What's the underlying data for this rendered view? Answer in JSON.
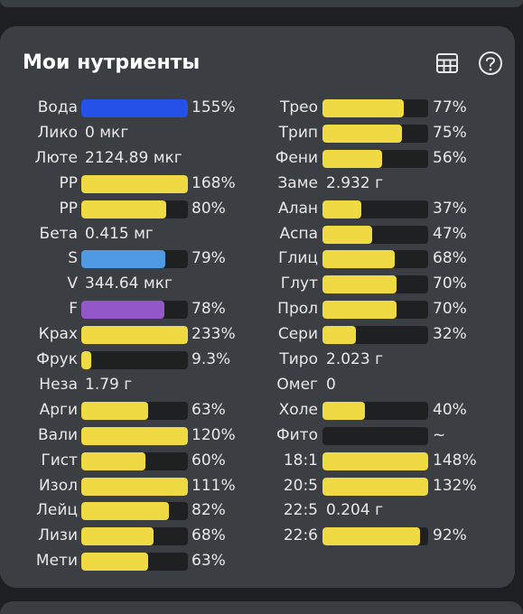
{
  "card": {
    "title": "Мои нутриенты",
    "icons": [
      "table-icon",
      "help-icon"
    ]
  },
  "colors": {
    "yellow": "#f0da44",
    "blue": "#2451e8",
    "lightblue": "#4f9ae2",
    "purple": "#9457c8",
    "track": "#1f2022"
  },
  "left": [
    {
      "label": "Вода",
      "value": "155%",
      "fill": 1,
      "color": "blue"
    },
    {
      "label": "Лико",
      "value": "0 мкг"
    },
    {
      "label": "Люте",
      "value": "2124.89 мкг"
    },
    {
      "label": "PP",
      "value": "168%",
      "fill": 1,
      "color": "yellow"
    },
    {
      "label": "PP",
      "value": "80%",
      "fill": 0.8,
      "color": "yellow"
    },
    {
      "label": "Бета",
      "value": "0.415 мг"
    },
    {
      "label": "S",
      "value": "79%",
      "fill": 0.79,
      "color": "lightblue"
    },
    {
      "label": "V",
      "value": "344.64 мкг"
    },
    {
      "label": "F",
      "value": "78%",
      "fill": 0.78,
      "color": "purple"
    },
    {
      "label": "Крах",
      "value": "233%",
      "fill": 1,
      "color": "yellow"
    },
    {
      "label": "Фрук",
      "value": "9.3%",
      "fill": 0.093,
      "color": "yellow"
    },
    {
      "label": "Неза",
      "value": "1.79 г"
    },
    {
      "label": "Арги",
      "value": "63%",
      "fill": 0.63,
      "color": "yellow"
    },
    {
      "label": "Вали",
      "value": "120%",
      "fill": 1,
      "color": "yellow"
    },
    {
      "label": "Гист",
      "value": "60%",
      "fill": 0.6,
      "color": "yellow"
    },
    {
      "label": "Изол",
      "value": "111%",
      "fill": 1,
      "color": "yellow"
    },
    {
      "label": "Лейц",
      "value": "82%",
      "fill": 0.82,
      "color": "yellow"
    },
    {
      "label": "Лизи",
      "value": "68%",
      "fill": 0.68,
      "color": "yellow"
    },
    {
      "label": "Мети",
      "value": "63%",
      "fill": 0.63,
      "color": "yellow"
    }
  ],
  "right": [
    {
      "label": "Трео",
      "value": "77%",
      "fill": 0.77,
      "color": "yellow"
    },
    {
      "label": "Трип",
      "value": "75%",
      "fill": 0.75,
      "color": "yellow"
    },
    {
      "label": "Фени",
      "value": "56%",
      "fill": 0.56,
      "color": "yellow"
    },
    {
      "label": "Заме",
      "value": "2.932 г"
    },
    {
      "label": "Алан",
      "value": "37%",
      "fill": 0.37,
      "color": "yellow"
    },
    {
      "label": "Аспа",
      "value": "47%",
      "fill": 0.47,
      "color": "yellow"
    },
    {
      "label": "Глиц",
      "value": "68%",
      "fill": 0.68,
      "color": "yellow"
    },
    {
      "label": "Глут",
      "value": "70%",
      "fill": 0.7,
      "color": "yellow"
    },
    {
      "label": "Прол",
      "value": "70%",
      "fill": 0.7,
      "color": "yellow"
    },
    {
      "label": "Сери",
      "value": "32%",
      "fill": 0.32,
      "color": "yellow"
    },
    {
      "label": "Тиро",
      "value": "2.023 г"
    },
    {
      "label": "Омег",
      "value": "0"
    },
    {
      "label": "Холе",
      "value": "40%",
      "fill": 0.4,
      "color": "yellow"
    },
    {
      "label": "Фито",
      "value": "~",
      "fill": 0,
      "color": "yellow"
    },
    {
      "label": "18:1",
      "value": "148%",
      "fill": 1,
      "color": "yellow"
    },
    {
      "label": "20:5",
      "value": "132%",
      "fill": 1,
      "color": "yellow"
    },
    {
      "label": "22:5",
      "value": "0.204 г"
    },
    {
      "label": "22:6",
      "value": "92%",
      "fill": 0.92,
      "color": "yellow"
    }
  ]
}
